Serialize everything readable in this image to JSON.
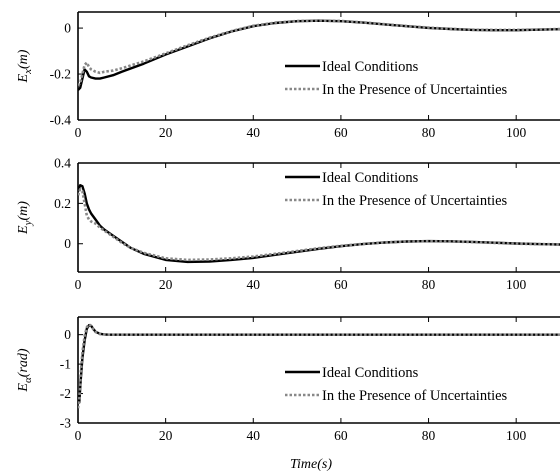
{
  "chart_data": [
    {
      "type": "line",
      "ylabel_main": "E",
      "ylabel_sub": "x",
      "ylabel_unit": "(m)",
      "xlim": [
        0,
        110
      ],
      "ylim": [
        -0.4,
        0.07
      ],
      "xticks": [
        0,
        20,
        40,
        60,
        80,
        100
      ],
      "xtick_labels": [
        "0",
        "20",
        "40",
        "60",
        "80",
        "100"
      ],
      "yticks": [
        -0.4,
        -0.2,
        0
      ],
      "ytick_labels": [
        "-0.4",
        "-0.2",
        "0"
      ],
      "legend_position": "bottom-right",
      "series": [
        {
          "name": "Ideal Conditions",
          "color": "#000000",
          "dash": "solid",
          "x": [
            0,
            0.5,
            1,
            1.5,
            2,
            2.5,
            3,
            4,
            5,
            6,
            8,
            10,
            15,
            20,
            25,
            30,
            35,
            40,
            45,
            50,
            55,
            60,
            65,
            70,
            75,
            80,
            85,
            90,
            95,
            100,
            105,
            110
          ],
          "y": [
            -0.27,
            -0.26,
            -0.22,
            -0.18,
            -0.19,
            -0.21,
            -0.215,
            -0.22,
            -0.22,
            -0.215,
            -0.205,
            -0.19,
            -0.155,
            -0.115,
            -0.08,
            -0.045,
            -0.015,
            0.008,
            0.022,
            0.03,
            0.032,
            0.03,
            0.024,
            0.016,
            0.008,
            0.001,
            -0.004,
            -0.008,
            -0.009,
            -0.009,
            -0.007,
            -0.005
          ]
        },
        {
          "name": "In the Presence of Uncertainties",
          "color": "#888888",
          "dash": "dotted",
          "x": [
            0,
            0.5,
            1,
            1.5,
            2,
            2.5,
            3,
            4,
            5,
            6,
            8,
            10,
            15,
            20,
            25,
            30,
            35,
            40,
            45,
            50,
            55,
            60,
            65,
            70,
            75,
            80,
            85,
            90,
            95,
            100,
            105,
            110
          ],
          "y": [
            -0.25,
            -0.24,
            -0.2,
            -0.16,
            -0.15,
            -0.17,
            -0.18,
            -0.19,
            -0.195,
            -0.19,
            -0.185,
            -0.175,
            -0.145,
            -0.11,
            -0.075,
            -0.042,
            -0.013,
            0.01,
            0.024,
            0.031,
            0.033,
            0.031,
            0.025,
            0.017,
            0.009,
            0.002,
            -0.003,
            -0.007,
            -0.008,
            -0.008,
            -0.006,
            -0.004
          ]
        }
      ]
    },
    {
      "type": "line",
      "ylabel_main": "E",
      "ylabel_sub": "y",
      "ylabel_unit": "(m)",
      "xlim": [
        0,
        110
      ],
      "ylim": [
        -0.14,
        0.4
      ],
      "xticks": [
        0,
        20,
        40,
        60,
        80,
        100
      ],
      "xtick_labels": [
        "0",
        "20",
        "40",
        "60",
        "80",
        "100"
      ],
      "yticks": [
        0,
        0.2,
        0.4
      ],
      "ytick_labels": [
        "0",
        "0.2",
        "0.4"
      ],
      "legend_position": "top-right",
      "series": [
        {
          "name": "Ideal Conditions",
          "color": "#000000",
          "dash": "solid",
          "x": [
            0,
            0.5,
            1,
            1.5,
            2,
            2.5,
            3,
            4,
            5,
            6,
            8,
            10,
            12,
            15,
            20,
            25,
            30,
            35,
            40,
            45,
            50,
            55,
            60,
            65,
            70,
            75,
            80,
            85,
            90,
            95,
            100,
            105,
            110
          ],
          "y": [
            0.26,
            0.29,
            0.285,
            0.25,
            0.2,
            0.17,
            0.15,
            0.12,
            0.09,
            0.07,
            0.04,
            0.01,
            -0.02,
            -0.05,
            -0.08,
            -0.09,
            -0.088,
            -0.08,
            -0.07,
            -0.055,
            -0.04,
            -0.025,
            -0.012,
            -0.002,
            0.006,
            0.011,
            0.013,
            0.012,
            0.009,
            0.005,
            0.001,
            -0.002,
            -0.004
          ]
        },
        {
          "name": "In the Presence of Uncertainties",
          "color": "#888888",
          "dash": "dotted",
          "x": [
            0,
            0.5,
            1,
            1.5,
            2,
            2.5,
            3,
            4,
            5,
            6,
            8,
            10,
            12,
            15,
            20,
            25,
            30,
            35,
            40,
            45,
            50,
            55,
            60,
            65,
            70,
            75,
            80,
            85,
            90,
            95,
            100,
            105,
            110
          ],
          "y": [
            0.24,
            0.27,
            0.26,
            0.2,
            0.14,
            0.12,
            0.11,
            0.1,
            0.08,
            0.065,
            0.035,
            0.005,
            -0.02,
            -0.045,
            -0.072,
            -0.08,
            -0.078,
            -0.072,
            -0.063,
            -0.05,
            -0.036,
            -0.022,
            -0.01,
            -0.001,
            0.007,
            0.011,
            0.012,
            0.011,
            0.008,
            0.004,
            0.0,
            -0.002,
            -0.003
          ]
        }
      ]
    },
    {
      "type": "line",
      "ylabel_main": "E",
      "ylabel_sub": "α",
      "ylabel_unit": "(rad)",
      "xlim": [
        0,
        110
      ],
      "ylim": [
        -3,
        0.6
      ],
      "xticks": [
        0,
        20,
        40,
        60,
        80,
        100
      ],
      "xtick_labels": [
        "0",
        "20",
        "40",
        "60",
        "80",
        "100"
      ],
      "yticks": [
        -3,
        -2,
        -1,
        0
      ],
      "ytick_labels": [
        "-3",
        "-2",
        "-1",
        "0"
      ],
      "xlabel": "Time(s)",
      "legend_position": "bottom-right",
      "series": [
        {
          "name": "Ideal Conditions",
          "color": "#000000",
          "dash": "solid",
          "x": [
            0,
            0.3,
            0.6,
            1,
            1.5,
            2,
            2.5,
            3,
            3.5,
            4,
            5,
            6,
            7,
            8,
            10,
            20,
            40,
            60,
            80,
            100,
            110
          ],
          "y": [
            -2.1,
            -2.3,
            -1.6,
            -0.8,
            -0.2,
            0.2,
            0.32,
            0.3,
            0.2,
            0.1,
            0.03,
            0.01,
            0.0,
            0.0,
            0.0,
            0.0,
            0.0,
            0.0,
            0.0,
            0.0,
            0.0
          ]
        },
        {
          "name": "In the Presence of Uncertainties",
          "color": "#888888",
          "dash": "dotted",
          "x": [
            0,
            0.3,
            0.6,
            1,
            1.5,
            2,
            2.5,
            3,
            3.5,
            4,
            5,
            6,
            7,
            8,
            10,
            20,
            40,
            60,
            80,
            100,
            110
          ],
          "y": [
            -2.5,
            -2.2,
            -1.4,
            -0.6,
            -0.05,
            0.25,
            0.35,
            0.3,
            0.18,
            0.09,
            0.02,
            0.01,
            0.0,
            0.0,
            0.0,
            0.0,
            0.0,
            0.0,
            0.0,
            0.0,
            0.0
          ]
        }
      ]
    }
  ]
}
